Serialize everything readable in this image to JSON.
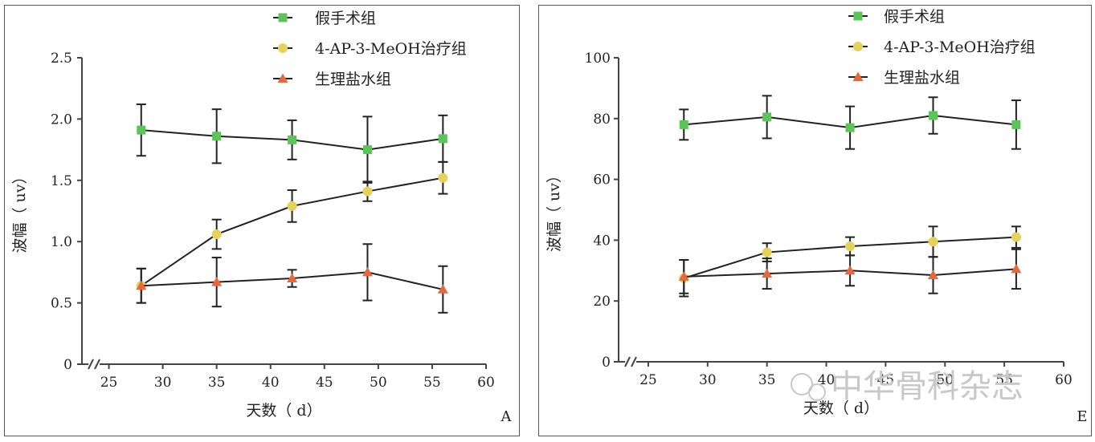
{
  "colors": {
    "sham": "#5cc55a",
    "treat": "#e4d25a",
    "saline": "#e8683d",
    "line": "#222222",
    "axis": "#444444"
  },
  "watermark": {
    "text": "中华骨科杂志"
  },
  "chart_data": [
    {
      "type": "line",
      "panel_label": "A",
      "xlabel": "天数（ d）",
      "ylabel": "波幅（ uv）",
      "xticks": [
        25,
        30,
        35,
        40,
        45,
        50,
        55,
        60
      ],
      "yticks": [
        0,
        0.5,
        1.0,
        1.5,
        2.0,
        2.5
      ],
      "ytick_labels": [
        "0",
        "0.5",
        "1.0",
        "1.5",
        "2.0",
        "2.5"
      ],
      "xlim": [
        22.5,
        60
      ],
      "ylim": [
        0,
        2.5
      ],
      "series": [
        {
          "name": "假手术组",
          "marker": "square",
          "color_key": "sham",
          "x": [
            28,
            35,
            42,
            49,
            56
          ],
          "y": [
            1.91,
            1.86,
            1.83,
            1.75,
            1.84
          ],
          "err": [
            0.21,
            0.22,
            0.16,
            0.27,
            0.19
          ]
        },
        {
          "name": "4-AP-3-MeOH治疗组",
          "marker": "circle",
          "color_key": "treat",
          "x": [
            28,
            35,
            42,
            49,
            56
          ],
          "y": [
            0.64,
            1.06,
            1.29,
            1.41,
            1.52
          ],
          "err": [
            0.14,
            0.12,
            0.13,
            0.08,
            0.13
          ]
        },
        {
          "name": "生理盐水组",
          "marker": "triangle",
          "color_key": "saline",
          "x": [
            28,
            35,
            42,
            49,
            56
          ],
          "y": [
            0.64,
            0.67,
            0.7,
            0.75,
            0.61
          ],
          "err": [
            0.14,
            0.2,
            0.07,
            0.23,
            0.19
          ]
        }
      ]
    },
    {
      "type": "line",
      "panel_label": "E",
      "xlabel": "天数（ d）",
      "ylabel": "波幅（ uv）",
      "xticks": [
        25,
        30,
        35,
        40,
        45,
        50,
        55,
        60
      ],
      "yticks": [
        0,
        20,
        40,
        60,
        80,
        100
      ],
      "ytick_labels": [
        "0",
        "20",
        "40",
        "60",
        "80",
        "100"
      ],
      "xlim": [
        22.5,
        60
      ],
      "ylim": [
        0,
        100
      ],
      "series": [
        {
          "name": "假手术组",
          "marker": "square",
          "color_key": "sham",
          "x": [
            28,
            35,
            42,
            49,
            56
          ],
          "y": [
            78,
            80.5,
            77,
            81,
            78
          ],
          "err": [
            5,
            7,
            7,
            6,
            8
          ]
        },
        {
          "name": "4-AP-3-MeOH治疗组",
          "marker": "circle",
          "color_key": "treat",
          "x": [
            28,
            35,
            42,
            49,
            56
          ],
          "y": [
            27.5,
            36,
            38,
            39.5,
            41
          ],
          "err": [
            6,
            3,
            3,
            5,
            3.5
          ]
        },
        {
          "name": "生理盐水组",
          "marker": "triangle",
          "color_key": "saline",
          "x": [
            28,
            35,
            42,
            49,
            56
          ],
          "y": [
            28,
            29,
            30,
            28.5,
            30.5
          ],
          "err": [
            5.5,
            5,
            5,
            6,
            6.5
          ]
        }
      ]
    }
  ]
}
